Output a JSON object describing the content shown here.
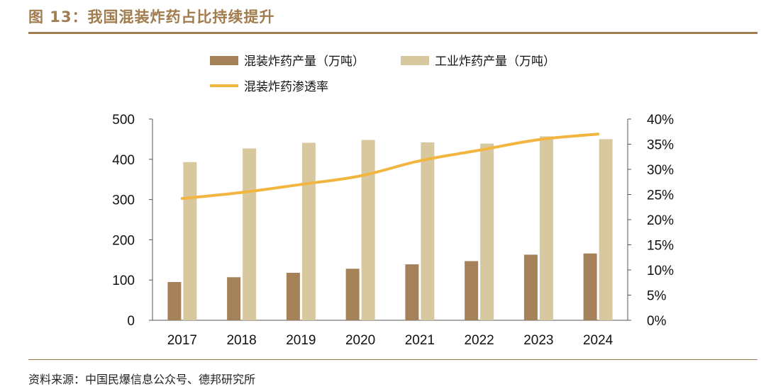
{
  "figure": {
    "title": "图 13：我国混装炸药占比持续提升",
    "source": "资料来源：中国民爆信息公众号、德邦研究所"
  },
  "colors": {
    "accent": "#a07c4e",
    "bar_mixed": "#a48159",
    "bar_industrial": "#d8c8a0",
    "line": "#f2b540"
  },
  "chart_data": {
    "type": "bar",
    "categories": [
      "2017",
      "2018",
      "2019",
      "2020",
      "2021",
      "2022",
      "2023",
      "2024"
    ],
    "series": [
      {
        "name": "混装炸药产量（万吨）",
        "kind": "bar",
        "axis": "left",
        "values": [
          95,
          107,
          118,
          128,
          139,
          147,
          163,
          166
        ]
      },
      {
        "name": "工业炸药产量（万吨）",
        "kind": "bar",
        "axis": "left",
        "values": [
          393,
          427,
          441,
          448,
          442,
          439,
          457,
          450
        ]
      },
      {
        "name": "混装炸药渗透率",
        "kind": "line",
        "axis": "right",
        "values": [
          24.2,
          25.4,
          27.0,
          28.7,
          31.7,
          33.8,
          35.9,
          37.0
        ]
      }
    ],
    "y_left": {
      "ylim": [
        0,
        500
      ],
      "ticks": [
        "0",
        "100",
        "200",
        "300",
        "400",
        "500"
      ]
    },
    "y_right": {
      "ylim": [
        0,
        40
      ],
      "ticks": [
        "0%",
        "5%",
        "10%",
        "15%",
        "20%",
        "25%",
        "30%",
        "35%",
        "40%"
      ]
    },
    "legend_position": "top",
    "grid": false
  }
}
